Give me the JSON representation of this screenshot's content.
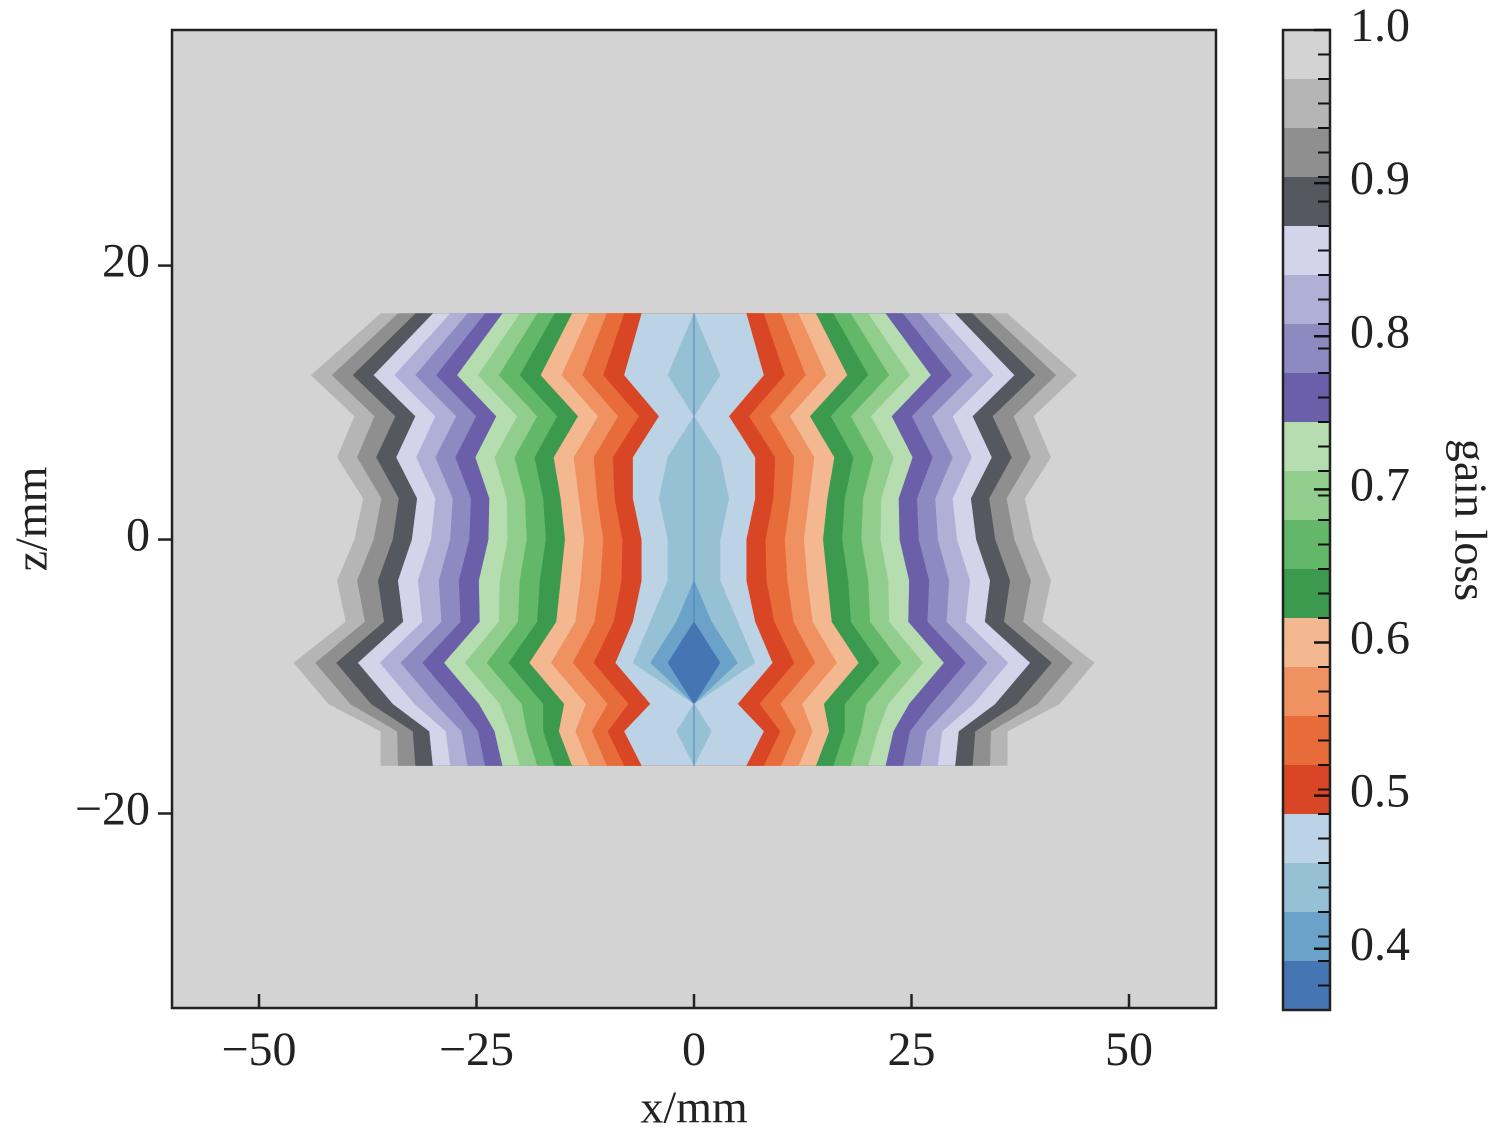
{
  "chart_data": {
    "type": "contour",
    "xlabel": "x/mm",
    "ylabel": "z/mm",
    "colorbar_label": "gain loss",
    "xlim": [
      -60,
      60
    ],
    "ylim": [
      -34.2,
      37.2
    ],
    "xticks": [
      {
        "value": -50,
        "label": "−50"
      },
      {
        "value": -25,
        "label": "−25"
      },
      0,
      25,
      50
    ],
    "yticks": [
      {
        "value": -20,
        "label": "−20"
      },
      0,
      20
    ],
    "clim": [
      0.36,
      1.0
    ],
    "cticks": [
      0.4,
      0.5,
      0.6,
      0.7,
      0.8,
      0.9,
      {
        "value": 1.0,
        "label": "1.0"
      }
    ],
    "levels": [
      0.36,
      0.392,
      0.424,
      0.456,
      0.488,
      0.52,
      0.552,
      0.584,
      0.616,
      0.648,
      0.68,
      0.712,
      0.744,
      0.776,
      0.808,
      0.84,
      0.872,
      0.904,
      0.936,
      0.968,
      1.0
    ],
    "colors": [
      "#4576b3",
      "#6aa2ca",
      "#96c0d4",
      "#bcd3e6",
      "#d84626",
      "#e86b3a",
      "#ef9161",
      "#f3b88f",
      "#3b9a4e",
      "#63b769",
      "#91cd8c",
      "#b5ddb0",
      "#6a5fa8",
      "#8d89c1",
      "#b0afd6",
      "#d3d3ea",
      "#55585e",
      "#8f8f8f",
      "#b5b5b5",
      "#d3d3d3"
    ],
    "z": [
      -16.5,
      -14,
      -12,
      -9,
      -6,
      -3,
      0,
      3,
      6,
      9,
      12,
      16.5
    ],
    "contours": [
      {
        "level": 0.968,
        "half_width": [
          36,
          36,
          42,
          46,
          40,
          41,
          39,
          38,
          41,
          39,
          44,
          36
        ]
      },
      {
        "level": 0.936,
        "half_width": [
          34,
          34.1,
          39.5,
          43.5,
          37.8,
          38.7,
          36.8,
          35.9,
          38.7,
          36.7,
          41.6,
          34
        ]
      },
      {
        "level": 0.904,
        "half_width": [
          32,
          32.3,
          37.1,
          41.1,
          35.6,
          36.3,
          34.6,
          33.9,
          36.5,
          34.3,
          39.2,
          32
        ]
      },
      {
        "level": 0.872,
        "half_width": [
          30,
          30.4,
          34.6,
          38.6,
          33.4,
          34,
          32.4,
          31.8,
          34.2,
          32,
          36.8,
          30
        ]
      },
      {
        "level": 0.84,
        "half_width": [
          28,
          28.5,
          32.1,
          36.1,
          31.2,
          31.7,
          30.2,
          29.7,
          31.9,
          29.7,
          34.4,
          28
        ]
      },
      {
        "level": 0.808,
        "half_width": [
          26,
          26.7,
          29.7,
          33.7,
          29,
          29.3,
          28,
          27.7,
          29.7,
          27.3,
          32,
          26
        ]
      },
      {
        "level": 0.776,
        "half_width": [
          24,
          24.8,
          27.2,
          31.2,
          26.8,
          27,
          25.8,
          25.6,
          27.4,
          25,
          29.6,
          24
        ]
      },
      {
        "level": 0.744,
        "half_width": [
          22,
          22.9,
          24.7,
          28.7,
          24.6,
          24.7,
          23.6,
          23.5,
          25.1,
          22.7,
          27.2,
          22
        ]
      },
      {
        "level": 0.712,
        "half_width": [
          20,
          21.1,
          22.3,
          26.3,
          22.4,
          22.3,
          21.4,
          21.5,
          22.9,
          20.3,
          24.8,
          20
        ]
      },
      {
        "level": 0.68,
        "half_width": [
          18,
          19.2,
          19.8,
          23.8,
          20.2,
          20,
          19.2,
          19.4,
          20.6,
          18,
          22.4,
          18
        ]
      },
      {
        "level": 0.648,
        "half_width": [
          16,
          17.3,
          17.3,
          21.3,
          18,
          17.7,
          17,
          17.3,
          18.3,
          15.7,
          20,
          16
        ]
      },
      {
        "level": 0.616,
        "half_width": [
          14,
          15.5,
          14.9,
          18.9,
          15.8,
          15.3,
          14.8,
          15.3,
          16.1,
          13.3,
          17.6,
          14
        ]
      },
      {
        "level": 0.584,
        "half_width": [
          12,
          13.6,
          12.4,
          16.4,
          13.6,
          13,
          12.6,
          13.2,
          13.8,
          11,
          15.2,
          12
        ]
      },
      {
        "level": 0.552,
        "half_width": [
          10,
          11.7,
          9.9,
          13.9,
          11.4,
          10.7,
          10.4,
          11.1,
          11.5,
          8.7,
          12.8,
          10
        ]
      },
      {
        "level": 0.52,
        "half_width": [
          8,
          9.9,
          7.5,
          11.5,
          9.2,
          8.3,
          8.2,
          9.1,
          9.3,
          6.3,
          10.4,
          8
        ]
      },
      {
        "level": 0.488,
        "half_width": [
          6,
          8,
          5,
          9,
          7,
          6,
          6,
          7,
          7,
          4,
          8,
          6
        ]
      },
      {
        "level": 0.456,
        "half_width": [
          0,
          2,
          0,
          7,
          5,
          3,
          3,
          4,
          3,
          0,
          3,
          0
        ]
      },
      {
        "level": 0.424,
        "half_width": [
          0,
          0,
          0,
          5,
          2,
          0,
          0,
          0,
          0,
          0,
          0,
          0
        ]
      },
      {
        "level": 0.392,
        "half_width": [
          0,
          0,
          0,
          3,
          0,
          0,
          0,
          0,
          0,
          0,
          0,
          0
        ]
      }
    ]
  }
}
